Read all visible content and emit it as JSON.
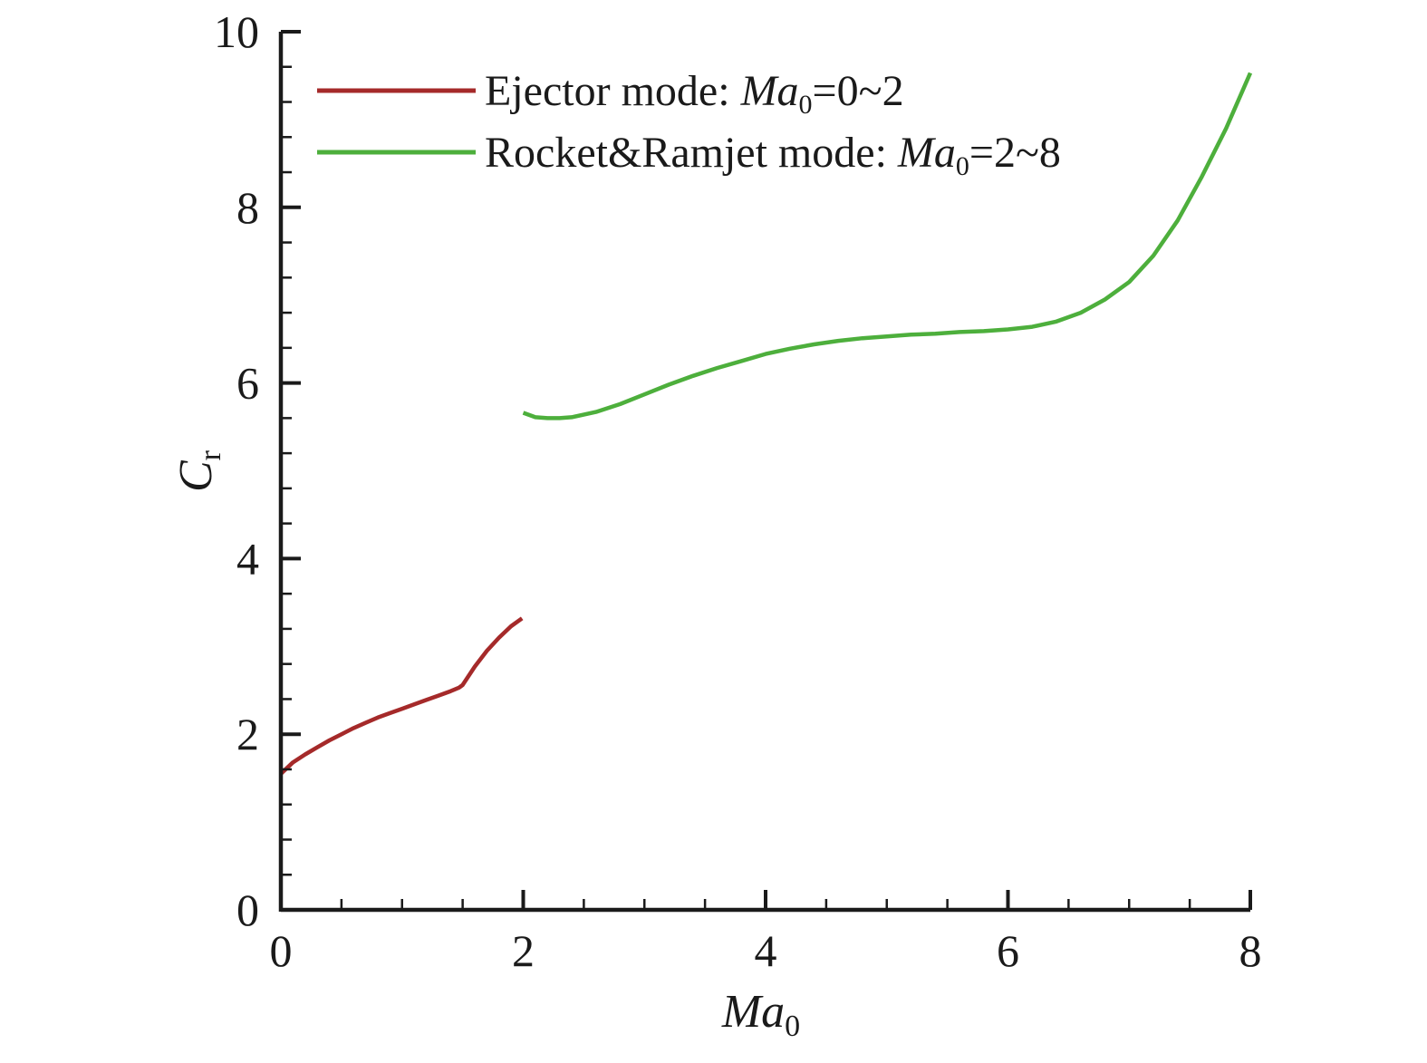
{
  "chart_data": {
    "type": "line",
    "xlabel": {
      "main": "Ma",
      "sub": "0"
    },
    "ylabel": {
      "main": "C",
      "sub": "r"
    },
    "xlim": [
      0,
      8
    ],
    "ylim": [
      0,
      10
    ],
    "x_major_ticks": [
      0,
      2,
      4,
      6,
      8
    ],
    "x_tick_labels": [
      "0",
      "2",
      "4",
      "6",
      "8"
    ],
    "x_minor_step": 0.5,
    "y_major_ticks": [
      0,
      2,
      4,
      6,
      8,
      10
    ],
    "y_tick_labels": [
      "0",
      "2",
      "4",
      "6",
      "8",
      "10"
    ],
    "y_minor_step": 0.4,
    "grid": false,
    "legend_position": "top-left",
    "series": [
      {
        "color": "#A52A2A",
        "legend": {
          "prefix": "Ejector mode: ",
          "var": "Ma",
          "sub": "0",
          "suffix": "=0~2"
        },
        "points": [
          [
            0.0,
            1.55
          ],
          [
            0.1,
            1.68
          ],
          [
            0.2,
            1.77
          ],
          [
            0.3,
            1.85
          ],
          [
            0.4,
            1.93
          ],
          [
            0.5,
            2.0
          ],
          [
            0.6,
            2.07
          ],
          [
            0.7,
            2.13
          ],
          [
            0.8,
            2.19
          ],
          [
            0.9,
            2.24
          ],
          [
            1.0,
            2.29
          ],
          [
            1.1,
            2.34
          ],
          [
            1.2,
            2.39
          ],
          [
            1.3,
            2.44
          ],
          [
            1.4,
            2.49
          ],
          [
            1.47,
            2.53
          ],
          [
            1.5,
            2.56
          ],
          [
            1.6,
            2.77
          ],
          [
            1.7,
            2.95
          ],
          [
            1.8,
            3.1
          ],
          [
            1.9,
            3.23
          ],
          [
            1.99,
            3.32
          ]
        ]
      },
      {
        "color": "#4DAF3C",
        "legend": {
          "prefix": "Rocket&Ramjet mode: ",
          "var": "Ma",
          "sub": "0",
          "suffix": "=2~8"
        },
        "points": [
          [
            2.0,
            5.66
          ],
          [
            2.1,
            5.61
          ],
          [
            2.2,
            5.6
          ],
          [
            2.3,
            5.6
          ],
          [
            2.4,
            5.61
          ],
          [
            2.6,
            5.67
          ],
          [
            2.8,
            5.76
          ],
          [
            3.0,
            5.87
          ],
          [
            3.2,
            5.98
          ],
          [
            3.4,
            6.08
          ],
          [
            3.6,
            6.17
          ],
          [
            3.8,
            6.25
          ],
          [
            4.0,
            6.33
          ],
          [
            4.2,
            6.39
          ],
          [
            4.4,
            6.44
          ],
          [
            4.6,
            6.48
          ],
          [
            4.8,
            6.51
          ],
          [
            5.0,
            6.53
          ],
          [
            5.2,
            6.55
          ],
          [
            5.4,
            6.56
          ],
          [
            5.6,
            6.58
          ],
          [
            5.8,
            6.59
          ],
          [
            6.0,
            6.61
          ],
          [
            6.2,
            6.64
          ],
          [
            6.4,
            6.7
          ],
          [
            6.6,
            6.8
          ],
          [
            6.8,
            6.95
          ],
          [
            7.0,
            7.15
          ],
          [
            7.2,
            7.45
          ],
          [
            7.4,
            7.85
          ],
          [
            7.6,
            8.35
          ],
          [
            7.8,
            8.9
          ],
          [
            8.0,
            9.53
          ]
        ]
      }
    ]
  }
}
